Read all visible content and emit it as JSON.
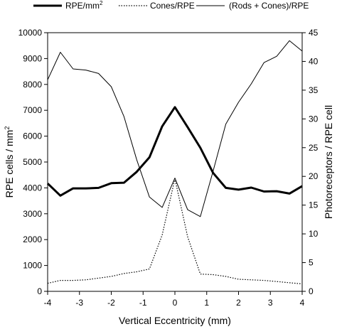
{
  "chart_data": {
    "type": "line",
    "legend": {
      "placement": "top",
      "entries": [
        {
          "label_main": "RPE/mm",
          "label_sup": "2",
          "style": "thick-solid"
        },
        {
          "label_main": "Cones/RPE",
          "style": "dotted"
        },
        {
          "label_main": "(Rods + Cones)/RPE",
          "style": "thin-solid"
        }
      ]
    },
    "x_axis": {
      "label": "Vertical Eccentricity (mm)",
      "range": [
        -4,
        4
      ],
      "ticks": [
        "-4",
        "-3",
        "-2",
        "-1",
        "0",
        "1",
        "2",
        "3",
        "4"
      ]
    },
    "y_left": {
      "label_main": "RPE cells / mm",
      "label_sup": "2",
      "range": [
        0,
        10000
      ],
      "ticks": [
        "0",
        "1000",
        "2000",
        "3000",
        "4000",
        "5000",
        "6000",
        "7000",
        "8000",
        "9000",
        "10000"
      ]
    },
    "y_right": {
      "label": "Photoreceptors / RPE cell",
      "range": [
        0,
        45
      ],
      "ticks": [
        "0",
        "5",
        "10",
        "15",
        "20",
        "25",
        "30",
        "35",
        "40",
        "45"
      ]
    },
    "grid": false,
    "series": [
      {
        "name": "RPE/mm2",
        "axis": "left",
        "style": "thick-solid",
        "points": [
          [
            -4,
            4170
          ],
          [
            -3.6,
            3700
          ],
          [
            -3.2,
            3980
          ],
          [
            -2.8,
            3980
          ],
          [
            -2.4,
            4000
          ],
          [
            -2,
            4180
          ],
          [
            -1.6,
            4200
          ],
          [
            -1.2,
            4620
          ],
          [
            -0.8,
            5180
          ],
          [
            -0.4,
            6380
          ],
          [
            0,
            7120
          ],
          [
            0.4,
            6350
          ],
          [
            0.8,
            5550
          ],
          [
            1.2,
            4580
          ],
          [
            1.6,
            4000
          ],
          [
            2,
            3930
          ],
          [
            2.4,
            4010
          ],
          [
            2.8,
            3860
          ],
          [
            3.2,
            3870
          ],
          [
            3.6,
            3780
          ],
          [
            4,
            4070
          ]
        ]
      },
      {
        "name": "Cones/RPE",
        "axis": "right",
        "style": "dotted",
        "points": [
          [
            -4,
            1.4
          ],
          [
            -3.6,
            1.9
          ],
          [
            -3.2,
            1.9
          ],
          [
            -2.8,
            2.0
          ],
          [
            -2.4,
            2.3
          ],
          [
            -2,
            2.6
          ],
          [
            -1.6,
            3.1
          ],
          [
            -1.2,
            3.4
          ],
          [
            -0.8,
            3.9
          ],
          [
            -0.4,
            9.8
          ],
          [
            0,
            19.6
          ],
          [
            0.4,
            9.5
          ],
          [
            0.8,
            3.0
          ],
          [
            1.2,
            2.9
          ],
          [
            1.6,
            2.6
          ],
          [
            2,
            2.1
          ],
          [
            2.4,
            2.0
          ],
          [
            2.8,
            1.9
          ],
          [
            3.2,
            1.7
          ],
          [
            3.6,
            1.5
          ],
          [
            4,
            1.3
          ]
        ]
      },
      {
        "name": "(Rods + Cones)/RPE",
        "axis": "right",
        "style": "thin-solid",
        "points": [
          [
            -4,
            36.8
          ],
          [
            -3.6,
            41.6
          ],
          [
            -3.2,
            38.7
          ],
          [
            -2.8,
            38.5
          ],
          [
            -2.4,
            37.9
          ],
          [
            -2,
            35.6
          ],
          [
            -1.6,
            30.4
          ],
          [
            -1.2,
            22.9
          ],
          [
            -0.8,
            16.4
          ],
          [
            -0.4,
            14.6
          ],
          [
            0,
            19.7
          ],
          [
            0.4,
            14.2
          ],
          [
            0.8,
            13.0
          ],
          [
            1.2,
            20.9
          ],
          [
            1.6,
            29.1
          ],
          [
            2,
            32.9
          ],
          [
            2.4,
            36.1
          ],
          [
            2.8,
            39.8
          ],
          [
            3.2,
            40.9
          ],
          [
            3.6,
            43.6
          ],
          [
            4,
            41.8
          ]
        ]
      }
    ]
  }
}
